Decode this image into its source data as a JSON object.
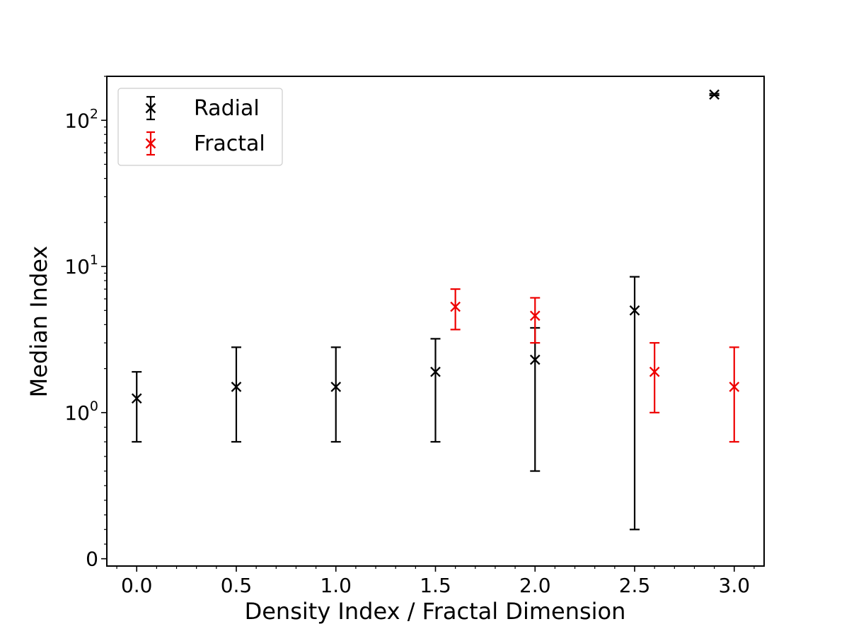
{
  "chart_data": {
    "type": "scatter",
    "title": "",
    "xlabel": "Density Index / Fractal Dimension",
    "ylabel": "Median Index",
    "xlim": [
      -0.15,
      3.15
    ],
    "x_ticks": [
      {
        "value": 0.0,
        "label": "0.0"
      },
      {
        "value": 0.5,
        "label": "0.5"
      },
      {
        "value": 1.0,
        "label": "1.0"
      },
      {
        "value": 1.5,
        "label": "1.5"
      },
      {
        "value": 2.0,
        "label": "2.0"
      },
      {
        "value": 2.5,
        "label": "2.5"
      },
      {
        "value": 3.0,
        "label": "3.0"
      }
    ],
    "yscale": "symlog",
    "ylim": [
      -0.05,
      200
    ],
    "y_ticks": [
      {
        "value": 0,
        "base": "0",
        "exp": ""
      },
      {
        "value": 1,
        "base": "10",
        "exp": "0"
      },
      {
        "value": 10,
        "base": "10",
        "exp": "1"
      },
      {
        "value": 100,
        "base": "10",
        "exp": "2"
      }
    ],
    "grid": false,
    "legend": "top-left",
    "series": [
      {
        "name": "Radial",
        "color": "#000000",
        "marker": "x",
        "points": [
          {
            "x": 0.0,
            "y": 1.25,
            "ylow": 0.8,
            "yhigh": 1.9
          },
          {
            "x": 0.5,
            "y": 1.5,
            "ylow": 0.8,
            "yhigh": 2.8
          },
          {
            "x": 1.0,
            "y": 1.5,
            "ylow": 0.8,
            "yhigh": 2.8
          },
          {
            "x": 1.5,
            "y": 1.9,
            "ylow": 0.8,
            "yhigh": 3.2
          },
          {
            "x": 2.0,
            "y": 2.3,
            "ylow": 0.6,
            "yhigh": 3.8
          },
          {
            "x": 2.5,
            "y": 5.0,
            "ylow": 0.2,
            "yhigh": 8.5
          },
          {
            "x": 2.9,
            "y": 150,
            "ylow": 148,
            "yhigh": 152
          }
        ]
      },
      {
        "name": "Fractal",
        "color": "#ee0000",
        "marker": "x",
        "points": [
          {
            "x": 1.6,
            "y": 5.3,
            "ylow": 3.7,
            "yhigh": 7.0
          },
          {
            "x": 2.0,
            "y": 4.6,
            "ylow": 3.0,
            "yhigh": 6.1
          },
          {
            "x": 2.6,
            "y": 1.9,
            "ylow": 1.0,
            "yhigh": 3.0
          },
          {
            "x": 3.0,
            "y": 1.5,
            "ylow": 0.8,
            "yhigh": 2.8
          }
        ]
      }
    ]
  }
}
